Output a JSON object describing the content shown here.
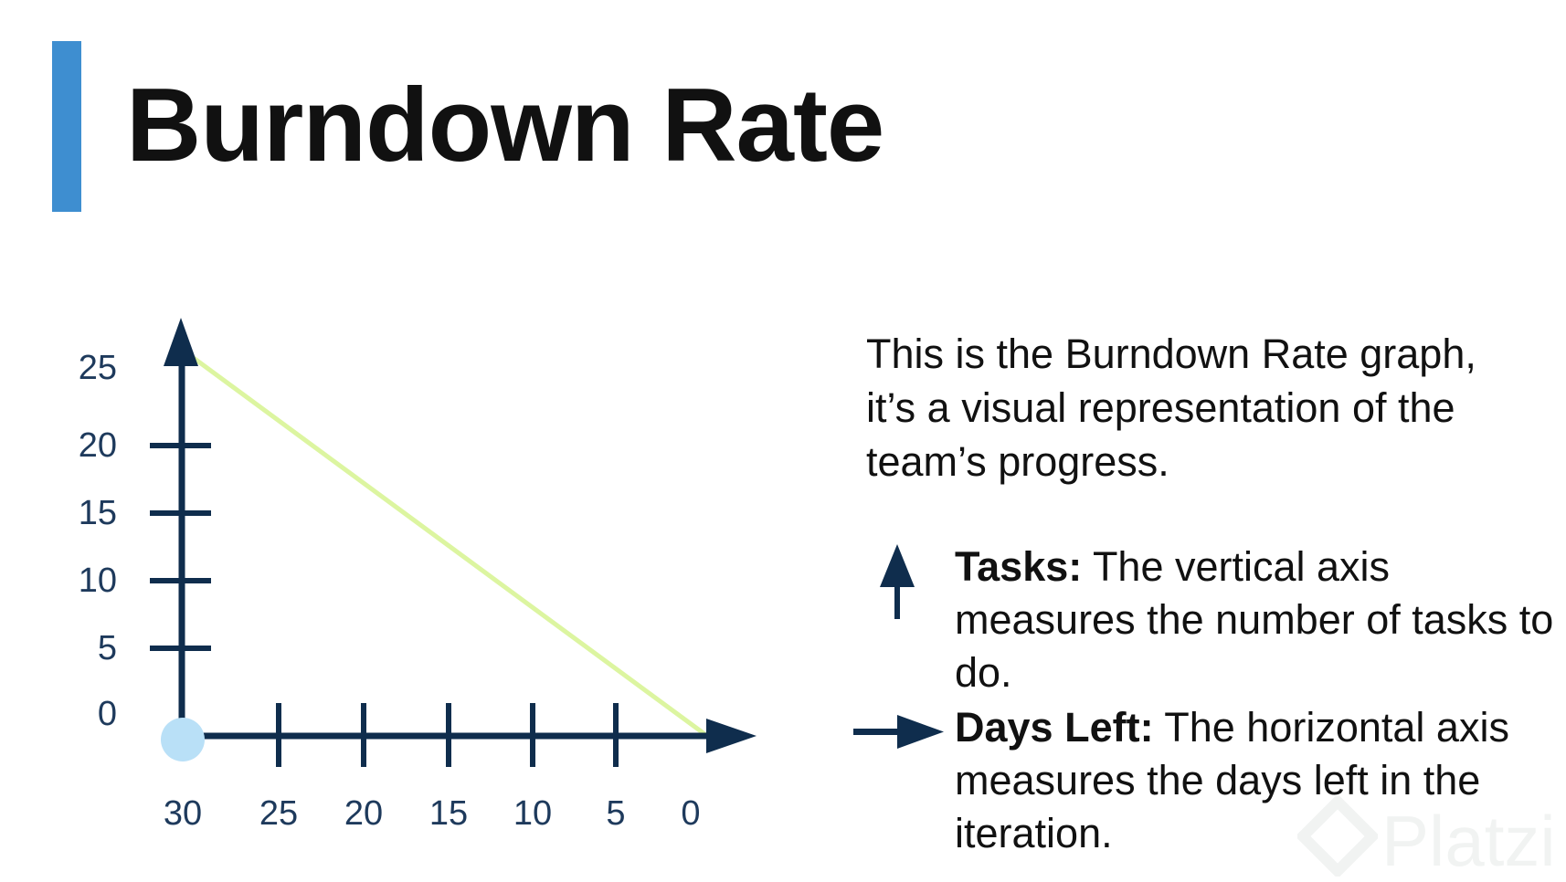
{
  "title": "Burndown Rate",
  "description": "This is the Burndown Rate graph, it’s a visual representation of the team’s progress.",
  "legend": {
    "tasks_label": "Tasks:",
    "tasks_text": " The vertical axis measures the number of tasks to do.",
    "days_label": "Days Left:",
    "days_text": " The horizontal axis measures the days left in the iteration."
  },
  "watermark": "Platzi",
  "colors": {
    "accent": "#3e8ed0",
    "axis": "#0f2d4d",
    "line": "#dcf5a0",
    "origin_marker": "#b9e0f7",
    "label": "#1e3a5c"
  },
  "icons": {
    "tasks": "arrow-up-icon",
    "days": "arrow-right-icon"
  },
  "chart_data": {
    "type": "line",
    "x_ticks": [
      "30",
      "25",
      "20",
      "15",
      "10",
      "5",
      "0"
    ],
    "y_ticks": [
      "0",
      "5",
      "10",
      "15",
      "20",
      "25"
    ],
    "series": [
      {
        "x": [
          30,
          0
        ],
        "y": [
          27,
          0
        ]
      }
    ],
    "xlim": [
      30,
      0
    ],
    "ylim": [
      0,
      28
    ],
    "grid": false,
    "legend": "none"
  }
}
